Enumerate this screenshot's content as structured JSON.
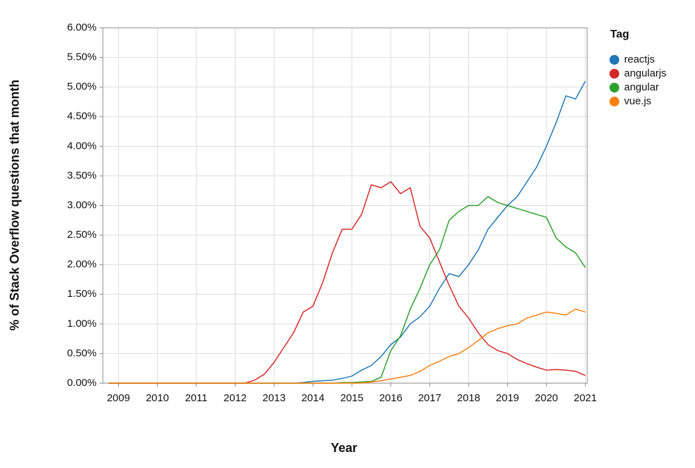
{
  "chart_data": {
    "type": "line",
    "x_label": "Year",
    "y_label": "% of Stack Overflow questions that month",
    "legend_title": "Tag",
    "legend_position": "right",
    "grid": true,
    "x": [
      2008.75,
      2009,
      2009.25,
      2009.5,
      2009.75,
      2010,
      2010.25,
      2010.5,
      2010.75,
      2011,
      2011.25,
      2011.5,
      2011.75,
      2012,
      2012.25,
      2012.5,
      2012.75,
      2013,
      2013.25,
      2013.5,
      2013.75,
      2014,
      2014.25,
      2014.5,
      2014.75,
      2015,
      2015.25,
      2015.5,
      2015.75,
      2016,
      2016.25,
      2016.5,
      2016.75,
      2017,
      2017.25,
      2017.5,
      2017.75,
      2018,
      2018.25,
      2018.5,
      2018.75,
      2019,
      2019.25,
      2019.5,
      2019.75,
      2020,
      2020.25,
      2020.5,
      2020.75,
      2021
    ],
    "xlim": [
      2008.6,
      2021.05
    ],
    "xticks": [
      2009,
      2010,
      2011,
      2012,
      2013,
      2014,
      2015,
      2016,
      2017,
      2018,
      2019,
      2020,
      2021
    ],
    "ylim": [
      0,
      6
    ],
    "yticks": [
      {
        "value": 0,
        "label": "0.00%"
      },
      {
        "value": 0.5,
        "label": "0.50%"
      },
      {
        "value": 1,
        "label": "1.00%"
      },
      {
        "value": 1.5,
        "label": "1.50%"
      },
      {
        "value": 2,
        "label": "2.00%"
      },
      {
        "value": 2.5,
        "label": "2.50%"
      },
      {
        "value": 3,
        "label": "3.00%"
      },
      {
        "value": 3.5,
        "label": "3.50%"
      },
      {
        "value": 4,
        "label": "4.00%"
      },
      {
        "value": 4.5,
        "label": "4.50%"
      },
      {
        "value": 5,
        "label": "5.00%"
      },
      {
        "value": 5.5,
        "label": "5.50%"
      },
      {
        "value": 6,
        "label": "6.00%"
      }
    ],
    "series": [
      {
        "name": "reactjs",
        "color": "#1f77b4",
        "values": [
          0,
          0,
          0,
          0,
          0,
          0,
          0,
          0,
          0,
          0,
          0,
          0,
          0,
          0,
          0,
          0,
          0,
          0,
          0,
          0,
          0.01,
          0.03,
          0.04,
          0.05,
          0.08,
          0.12,
          0.22,
          0.3,
          0.45,
          0.65,
          0.78,
          1.0,
          1.12,
          1.3,
          1.6,
          1.85,
          1.8,
          2.0,
          2.25,
          2.6,
          2.8,
          3.0,
          3.15,
          3.4,
          3.65,
          4.0,
          4.4,
          4.85,
          4.8,
          5.1
        ]
      },
      {
        "name": "angularjs",
        "color": "#d62728",
        "values": [
          0,
          0,
          0,
          0,
          0,
          0,
          0,
          0,
          0,
          0,
          0,
          0,
          0,
          0,
          0,
          0.05,
          0.15,
          0.35,
          0.6,
          0.85,
          1.2,
          1.3,
          1.7,
          2.2,
          2.6,
          2.6,
          2.85,
          3.35,
          3.3,
          3.4,
          3.2,
          3.3,
          2.65,
          2.45,
          2.05,
          1.65,
          1.3,
          1.1,
          0.85,
          0.65,
          0.55,
          0.5,
          0.4,
          0.33,
          0.27,
          0.22,
          0.23,
          0.22,
          0.2,
          0.13
        ]
      },
      {
        "name": "angular",
        "color": "#2ca02c",
        "values": [
          0,
          0,
          0,
          0,
          0,
          0,
          0,
          0,
          0,
          0,
          0,
          0,
          0,
          0,
          0,
          0,
          0,
          0,
          0,
          0,
          0,
          0,
          0,
          0,
          0.01,
          0.01,
          0.02,
          0.03,
          0.1,
          0.55,
          0.8,
          1.25,
          1.6,
          2.0,
          2.25,
          2.75,
          2.9,
          3.0,
          3.0,
          3.15,
          3.05,
          3.0,
          2.95,
          2.9,
          2.85,
          2.8,
          2.45,
          2.3,
          2.2,
          1.95
        ]
      },
      {
        "name": "vue.js",
        "color": "#ff7f0e",
        "values": [
          0,
          0,
          0,
          0,
          0,
          0,
          0,
          0,
          0,
          0,
          0,
          0,
          0,
          0,
          0,
          0,
          0,
          0,
          0,
          0,
          0,
          0,
          0,
          0,
          0,
          0,
          0,
          0.02,
          0.04,
          0.07,
          0.1,
          0.13,
          0.2,
          0.3,
          0.37,
          0.45,
          0.5,
          0.6,
          0.72,
          0.85,
          0.92,
          0.97,
          1.0,
          1.1,
          1.15,
          1.2,
          1.18,
          1.15,
          1.25,
          1.2
        ]
      }
    ]
  }
}
